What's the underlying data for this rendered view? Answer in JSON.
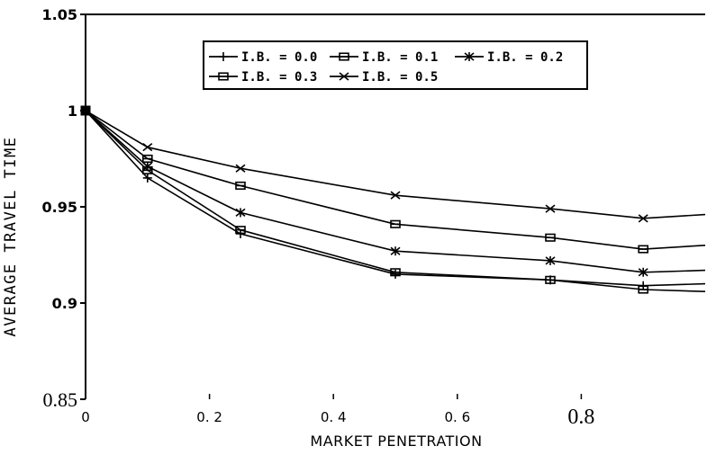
{
  "chart_data": {
    "type": "line",
    "title": "",
    "xlabel": "MARKET PENETRATION",
    "ylabel": "AVERAGE TRAVEL TIME",
    "xlim": [
      0,
      1
    ],
    "ylim": [
      0.85,
      1.05
    ],
    "x_ticks": [
      {
        "value": 0,
        "label": "0"
      },
      {
        "value": 0.2,
        "label": "0. 2"
      },
      {
        "value": 0.4,
        "label": "0. 4"
      },
      {
        "value": 0.6,
        "label": "0. 6"
      },
      {
        "value": 0.8,
        "label": "0.8"
      }
    ],
    "y_ticks": [
      {
        "value": 0.85,
        "label": "0.85"
      },
      {
        "value": 0.9,
        "label": "0.9"
      },
      {
        "value": 0.95,
        "label": "0.95"
      },
      {
        "value": 1,
        "label": "1"
      },
      {
        "value": 1.05,
        "label": "1.05"
      }
    ],
    "grid": false,
    "legend_position": "top-center",
    "series": [
      {
        "name": "I.B. = 0.0",
        "marker": "plus",
        "color": "#000000",
        "x": [
          0,
          0.1,
          0.25,
          0.5,
          0.75,
          0.9,
          1.0
        ],
        "y": [
          1.0,
          0.965,
          0.936,
          0.915,
          0.912,
          0.909,
          0.91
        ]
      },
      {
        "name": "I.B. = 0.1",
        "marker": "square",
        "color": "#000000",
        "x": [
          0,
          0.1,
          0.25,
          0.5,
          0.75,
          0.9,
          1.0
        ],
        "y": [
          1.0,
          0.969,
          0.938,
          0.916,
          0.912,
          0.907,
          0.906
        ]
      },
      {
        "name": "I.B. = 0.2",
        "marker": "star",
        "color": "#000000",
        "x": [
          0,
          0.1,
          0.25,
          0.5,
          0.75,
          0.9,
          1.0
        ],
        "y": [
          1.0,
          0.971,
          0.947,
          0.927,
          0.922,
          0.916,
          0.917
        ]
      },
      {
        "name": "I.B. = 0.3",
        "marker": "square",
        "color": "#000000",
        "x": [
          0,
          0.1,
          0.25,
          0.5,
          0.75,
          0.9,
          1.0
        ],
        "y": [
          1.0,
          0.975,
          0.961,
          0.941,
          0.934,
          0.928,
          0.93
        ]
      },
      {
        "name": "I.B. = 0.5",
        "marker": "x",
        "color": "#000000",
        "x": [
          0,
          0.1,
          0.25,
          0.5,
          0.75,
          0.9,
          1.0
        ],
        "y": [
          1.0,
          0.981,
          0.97,
          0.956,
          0.949,
          0.944,
          0.946
        ]
      }
    ]
  }
}
